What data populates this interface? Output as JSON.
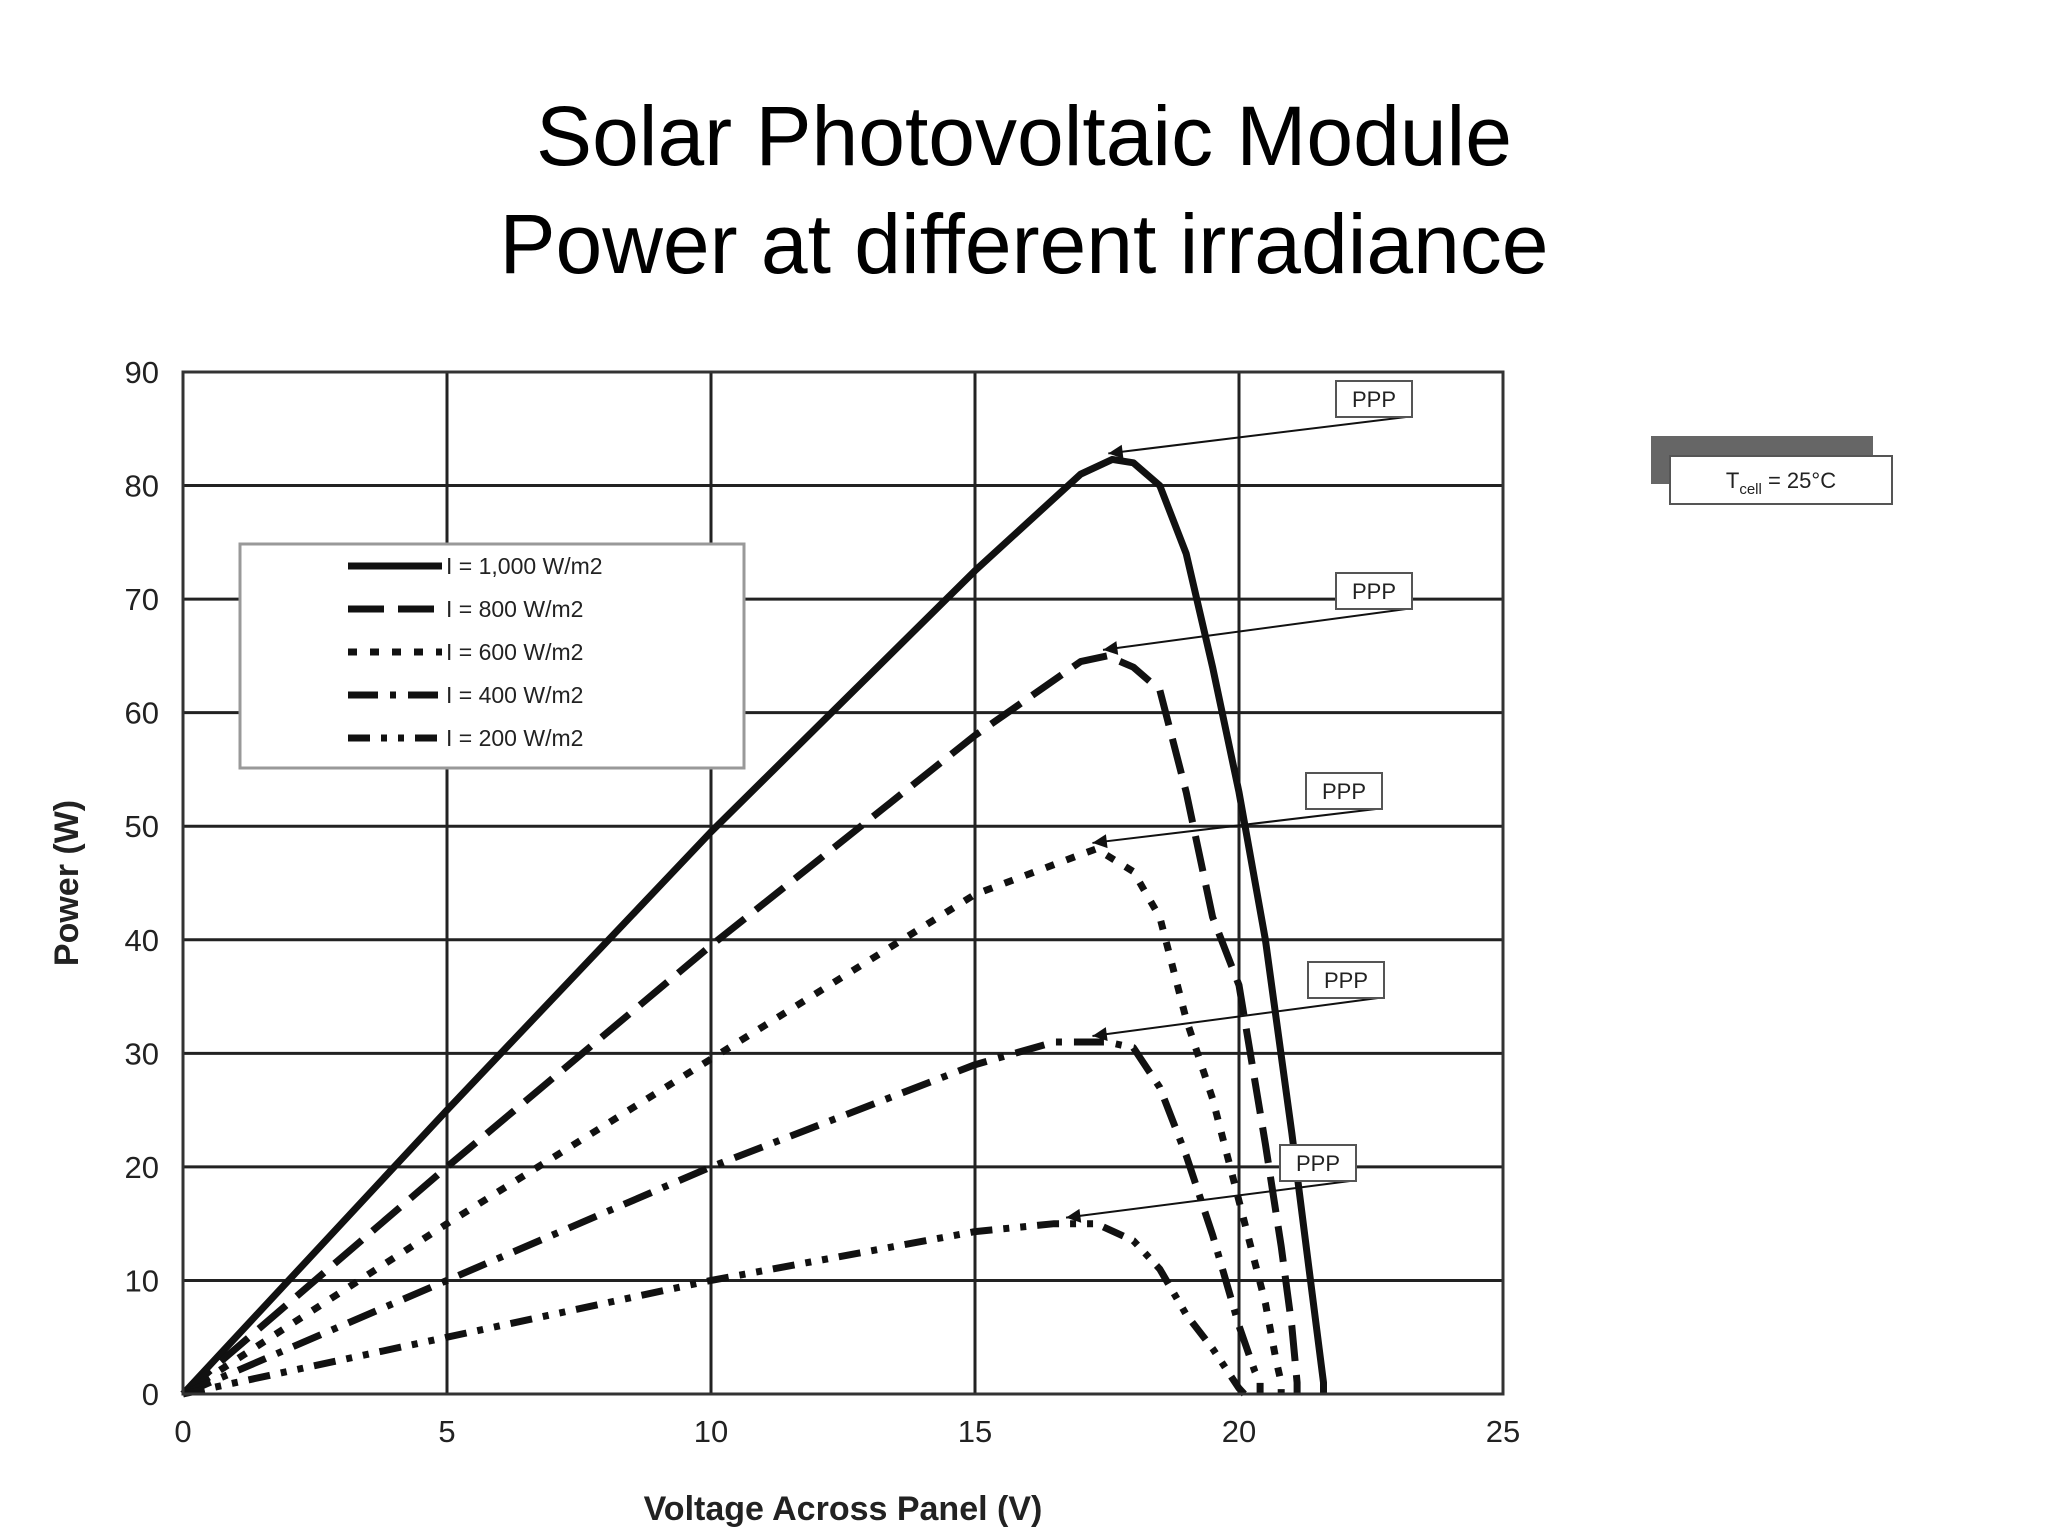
{
  "chart_data": {
    "type": "line",
    "title": "Solar Photovoltaic Module",
    "subtitle": "Power at different irradiance",
    "xlabel": "Voltage Across Panel (V)",
    "ylabel": "Power (W)",
    "xlim": [
      0,
      25
    ],
    "ylim": [
      0,
      90
    ],
    "xticks": [
      0,
      5,
      10,
      15,
      20,
      25
    ],
    "yticks": [
      0,
      10,
      20,
      30,
      40,
      50,
      60,
      70,
      80,
      90
    ],
    "grid": true,
    "legend_position": "top-left",
    "series": [
      {
        "name": "I = 1,000 W/m2",
        "dash": "solid",
        "x": [
          0,
          5,
          10,
          15,
          17,
          17.6,
          18,
          18.5,
          19,
          19.5,
          20,
          20.5,
          21,
          21.3,
          21.6,
          21.6
        ],
        "y": [
          0,
          25,
          49.5,
          72.5,
          81,
          82.3,
          82,
          80,
          74,
          64,
          53,
          40,
          23,
          12,
          1,
          0
        ]
      },
      {
        "name": "I =   800 W/m2",
        "dash": "long",
        "x": [
          0,
          5,
          10,
          15,
          17,
          17.5,
          18,
          18.5,
          19,
          19.5,
          20,
          20.5,
          20.8,
          21,
          21.1,
          21.1
        ],
        "y": [
          0,
          20,
          39.5,
          58,
          64.5,
          65,
          64,
          62,
          53,
          42,
          36,
          22,
          13,
          6,
          1,
          0
        ]
      },
      {
        "name": "I =   600 W/m2",
        "dash": "short",
        "x": [
          0,
          5,
          10,
          15,
          17,
          17.3,
          18,
          18.5,
          19,
          19.5,
          20,
          20.5,
          20.7,
          20.8,
          20.8
        ],
        "y": [
          0,
          15,
          29.5,
          44,
          47.5,
          48,
          46,
          42,
          33,
          26,
          17,
          8,
          3,
          1,
          0
        ]
      },
      {
        "name": "I =   400 W/m2",
        "dash": "dashdot",
        "x": [
          0,
          5,
          10,
          15,
          16.5,
          17.5,
          18,
          18.5,
          19,
          19.5,
          20,
          20.3,
          20.4,
          20.4
        ],
        "y": [
          0,
          10,
          20,
          29,
          31,
          31,
          30.5,
          27,
          21,
          14,
          6,
          2,
          1,
          0
        ]
      },
      {
        "name": "I =   200 W/m2",
        "dash": "dashdotdot",
        "x": [
          0,
          5,
          10,
          15,
          16.5,
          17.3,
          18,
          18.5,
          19,
          19.5,
          20,
          20.1
        ],
        "y": [
          0,
          5,
          10,
          14.3,
          15,
          15,
          13.5,
          11,
          7,
          4,
          0.5,
          0
        ]
      }
    ],
    "annotations": [
      {
        "text": "PPP",
        "x": 17.6,
        "y": 82.3
      },
      {
        "text": "PPP",
        "x": 17.5,
        "y": 65
      },
      {
        "text": "PPP",
        "x": 17.3,
        "y": 48
      },
      {
        "text": "PPP",
        "x": 17.3,
        "y": 31
      },
      {
        "text": "PPP",
        "x": 16.8,
        "y": 15
      }
    ],
    "condition_label": {
      "base": "T",
      "sub": "cell",
      "rest": " = 25°C"
    }
  }
}
